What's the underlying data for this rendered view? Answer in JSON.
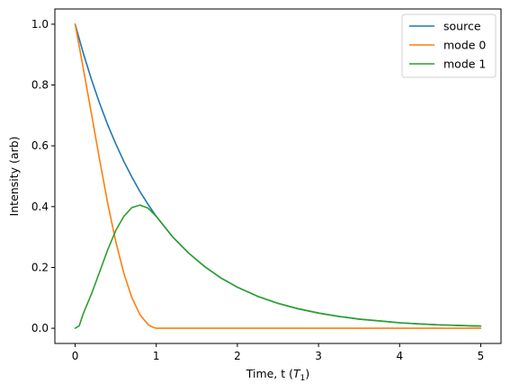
{
  "chart_data": {
    "type": "line",
    "title": "",
    "xlabel": {
      "prefix": "Time, t (",
      "symbol": "T",
      "subscript": "1",
      "suffix": ")"
    },
    "ylabel": "Intensity (arb)",
    "xlim": [
      -0.25,
      5.25
    ],
    "ylim": [
      -0.05,
      1.05
    ],
    "xticks": [
      0,
      1,
      2,
      3,
      4,
      5
    ],
    "xtick_labels": [
      "0",
      "1",
      "2",
      "3",
      "4",
      "5"
    ],
    "yticks": [
      0.0,
      0.2,
      0.4,
      0.6,
      0.8,
      1.0
    ],
    "ytick_labels": [
      "0.0",
      "0.2",
      "0.4",
      "0.6",
      "0.8",
      "1.0"
    ],
    "grid": false,
    "legend_position": "top-right",
    "series": [
      {
        "name": "source",
        "color": "#1f77b4",
        "x": [
          0,
          0.1,
          0.2,
          0.3,
          0.4,
          0.5,
          0.6,
          0.7,
          0.8,
          0.9,
          1.0,
          1.2,
          1.4,
          1.6,
          1.8,
          2.0,
          2.25,
          2.5,
          2.75,
          3.0,
          3.25,
          3.5,
          3.75,
          4.0,
          4.25,
          4.5,
          4.75,
          5.0
        ],
        "y": [
          1.0,
          0.905,
          0.819,
          0.741,
          0.67,
          0.607,
          0.549,
          0.497,
          0.449,
          0.407,
          0.368,
          0.301,
          0.247,
          0.202,
          0.165,
          0.135,
          0.105,
          0.082,
          0.064,
          0.05,
          0.039,
          0.03,
          0.024,
          0.018,
          0.014,
          0.011,
          0.009,
          0.007
        ]
      },
      {
        "name": "mode 0",
        "color": "#ff7f0e",
        "x": [
          0,
          0.1,
          0.2,
          0.3,
          0.4,
          0.5,
          0.6,
          0.7,
          0.8,
          0.9,
          0.95,
          1.0,
          1.2,
          1.5,
          2.0,
          3.0,
          4.0,
          5.0
        ],
        "y": [
          1.0,
          0.855,
          0.707,
          0.557,
          0.413,
          0.286,
          0.181,
          0.1,
          0.044,
          0.012,
          0.004,
          0.0,
          0.0,
          0.0,
          0.0,
          0.0,
          0.0,
          0.0
        ]
      },
      {
        "name": "mode 1",
        "color": "#2ca02c",
        "x": [
          0,
          0.05,
          0.1,
          0.2,
          0.3,
          0.4,
          0.5,
          0.6,
          0.7,
          0.8,
          0.9,
          1.0,
          1.2,
          1.4,
          1.6,
          1.8,
          2.0,
          2.25,
          2.5,
          2.75,
          3.0,
          3.25,
          3.5,
          3.75,
          4.0,
          4.25,
          4.5,
          4.75,
          5.0
        ],
        "y": [
          0.0,
          0.008,
          0.048,
          0.112,
          0.184,
          0.257,
          0.321,
          0.368,
          0.397,
          0.405,
          0.395,
          0.368,
          0.301,
          0.247,
          0.202,
          0.165,
          0.135,
          0.105,
          0.082,
          0.064,
          0.05,
          0.039,
          0.03,
          0.024,
          0.018,
          0.014,
          0.011,
          0.009,
          0.007
        ]
      }
    ]
  }
}
